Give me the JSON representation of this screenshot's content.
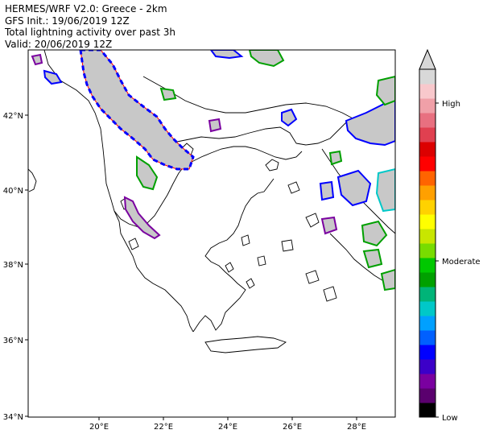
{
  "title": {
    "line1": "HERMES/WRF V2.0: Greece - 2km",
    "line2": "GFS Init.: 19/06/2019 12Z",
    "line3": "Total lightning activity over past 3h",
    "line4": "Valid: 20/06/2019 12Z"
  },
  "map": {
    "lat_ticks": [
      "42°N",
      "40°N",
      "38°N",
      "36°N",
      "34°N"
    ],
    "lon_ticks": [
      "20°E",
      "22°E",
      "24°E",
      "26°E",
      "28°E"
    ]
  },
  "colorbar": {
    "labels": {
      "high": "High",
      "moderate": "Moderate",
      "low": "Low"
    },
    "colors": [
      "#000000",
      "#5a006e",
      "#7a00a0",
      "#3c00c8",
      "#0000ff",
      "#0060ff",
      "#00a0ff",
      "#00c8c8",
      "#00b478",
      "#00a000",
      "#00c800",
      "#78dc00",
      "#c8e600",
      "#ffff00",
      "#ffd200",
      "#ffa000",
      "#ff6400",
      "#ff0000",
      "#dc0000",
      "#e04050",
      "#e87080",
      "#f0a0a8",
      "#f8c8cc",
      "#d8d8d8"
    ]
  },
  "colors": {
    "activity_fill": "#c8c8c8",
    "coast": "#000000"
  }
}
